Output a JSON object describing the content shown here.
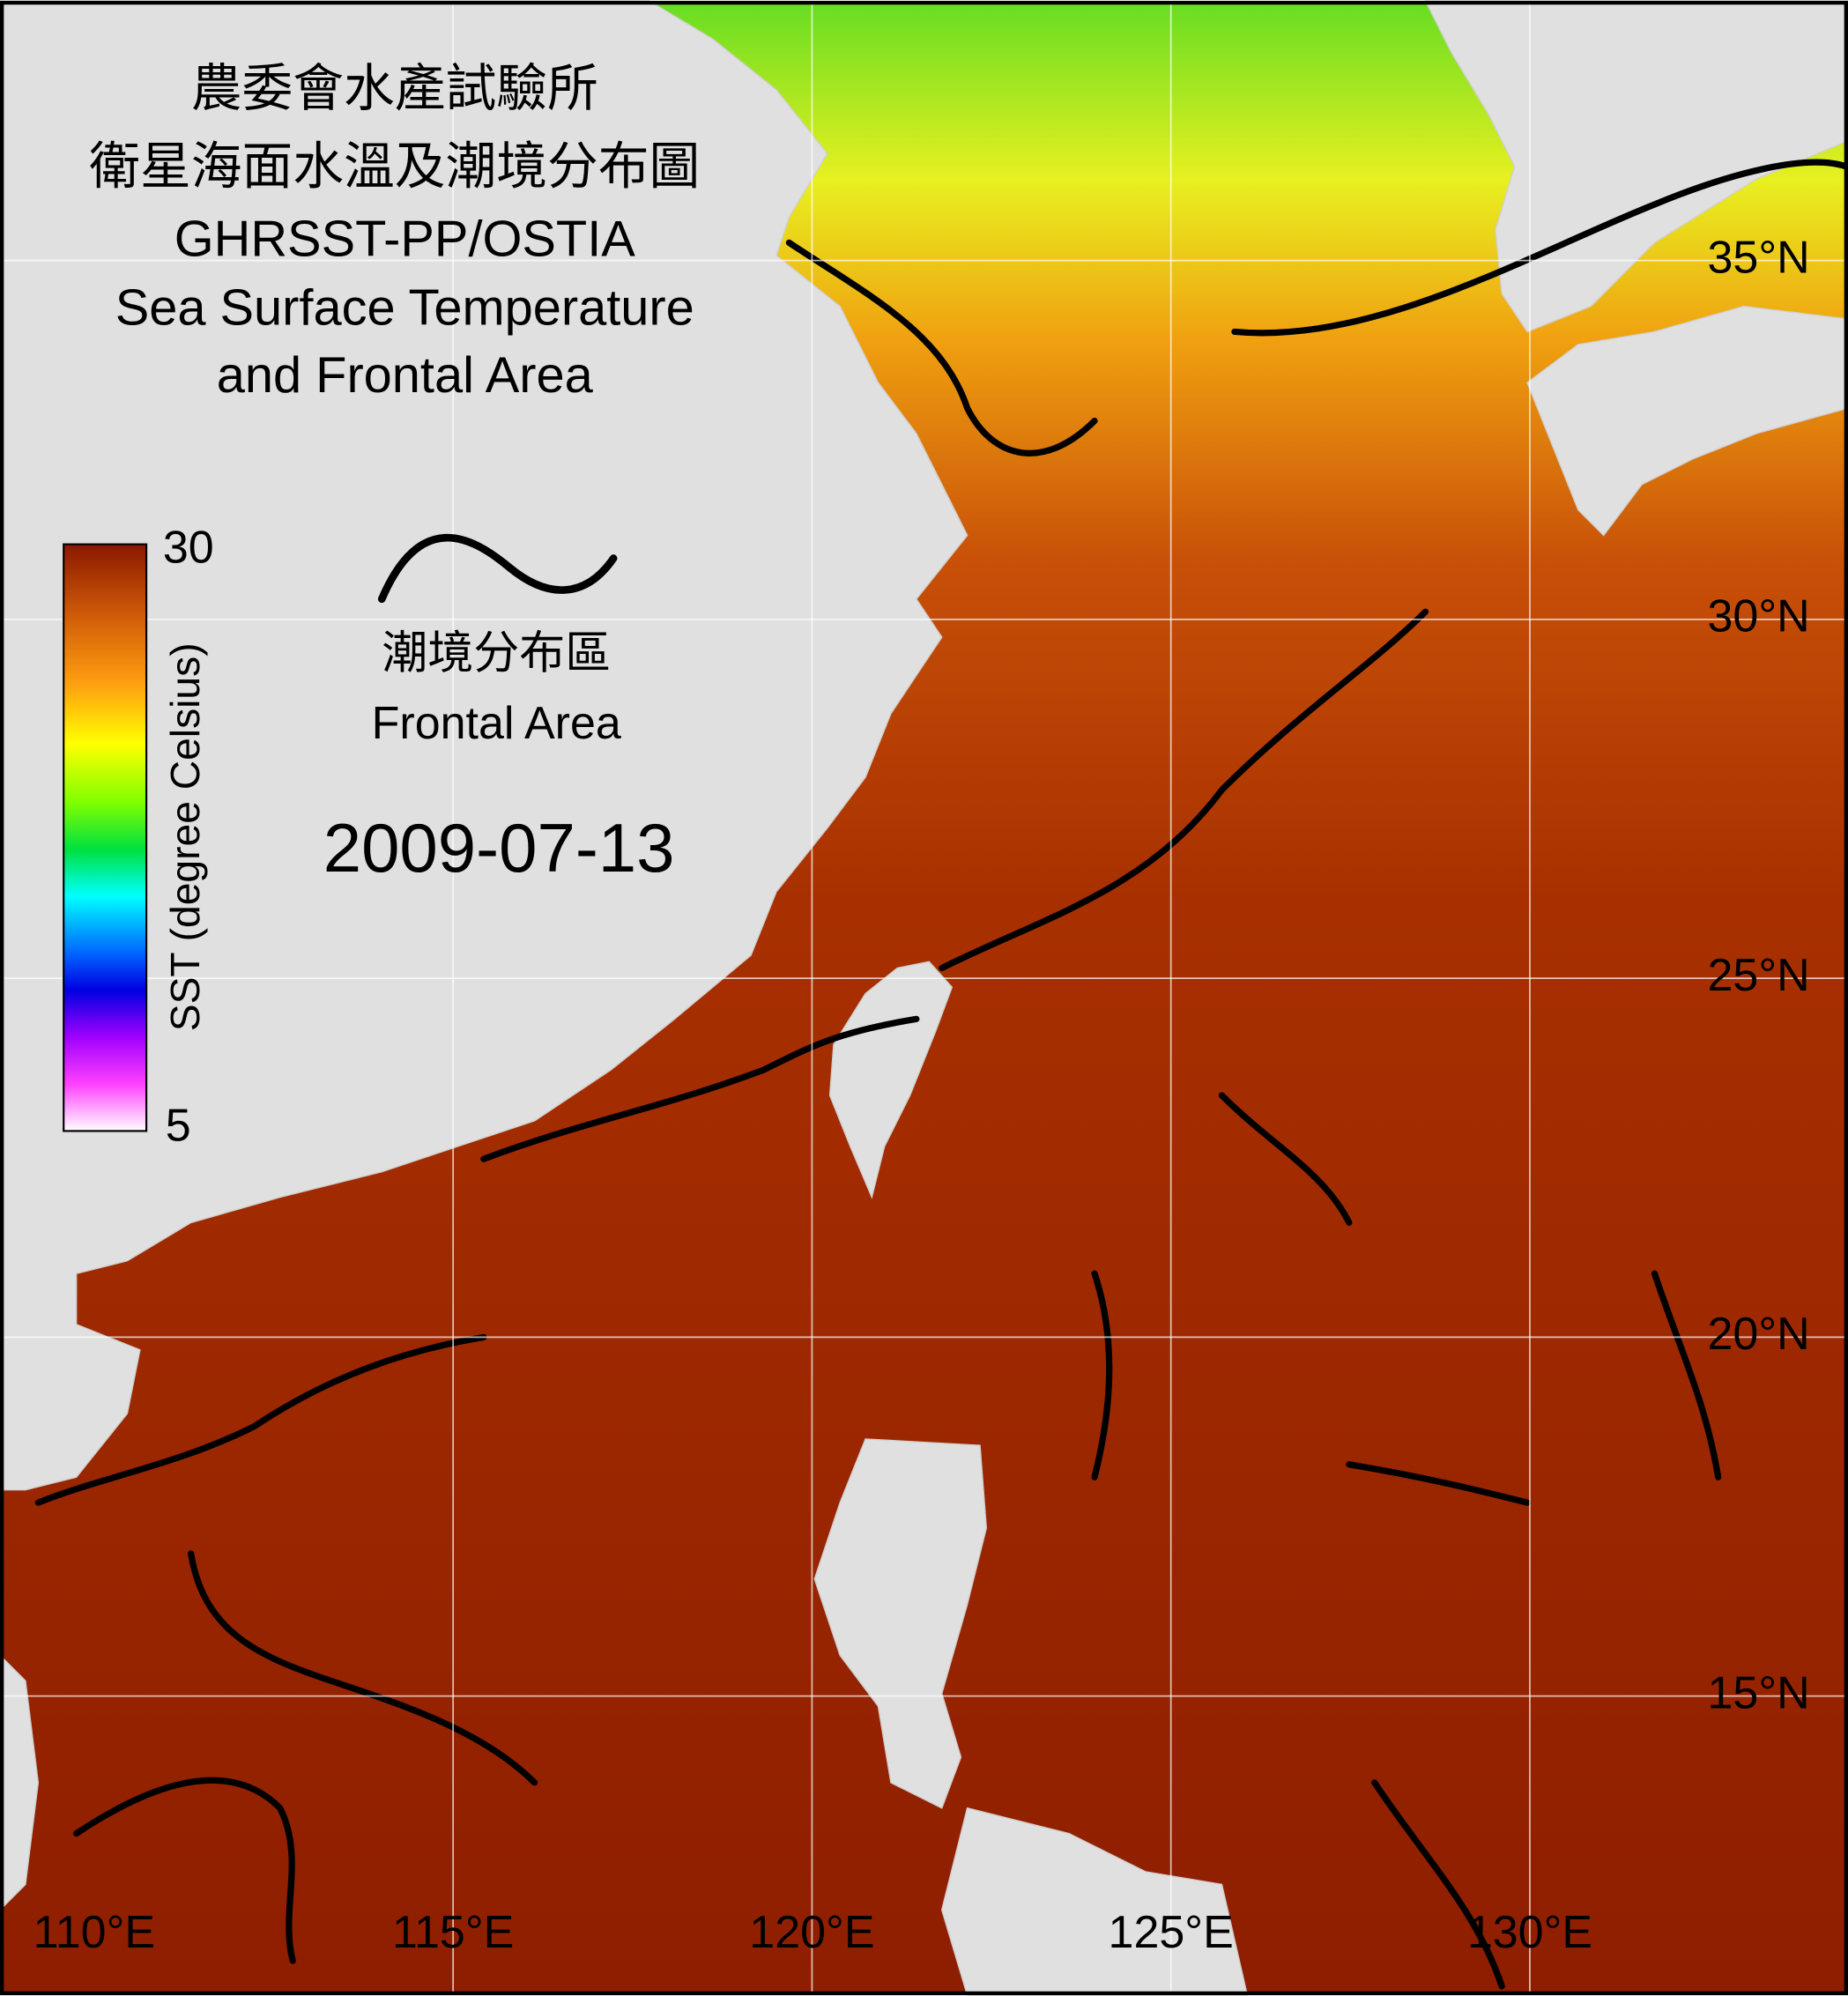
{
  "title": [
    "農委會水產試驗所",
    "衛星海面水溫及潮境分布圖",
    "GHRSST-PP/OSTIA",
    "Sea Surface Temperature",
    "and Frontal Area"
  ],
  "colorbar": {
    "label": "SST (degree Celsius)",
    "min": 5,
    "max": 30
  },
  "legend": {
    "label_zh": "潮境分布區",
    "label_en": "Frontal Area"
  },
  "date": "2009-07-13",
  "lat_ticks": [
    {
      "value": 35,
      "label": "35°N"
    },
    {
      "value": 30,
      "label": "30°N"
    },
    {
      "value": 25,
      "label": "25°N"
    },
    {
      "value": 20,
      "label": "20°N"
    },
    {
      "value": 15,
      "label": "15°N"
    }
  ],
  "lon_ticks": [
    {
      "value": 110,
      "label": "110°E"
    },
    {
      "value": 115,
      "label": "115°E"
    },
    {
      "value": 120,
      "label": "120°E"
    },
    {
      "value": 125,
      "label": "125°E"
    },
    {
      "value": 130,
      "label": "130°E"
    }
  ]
}
